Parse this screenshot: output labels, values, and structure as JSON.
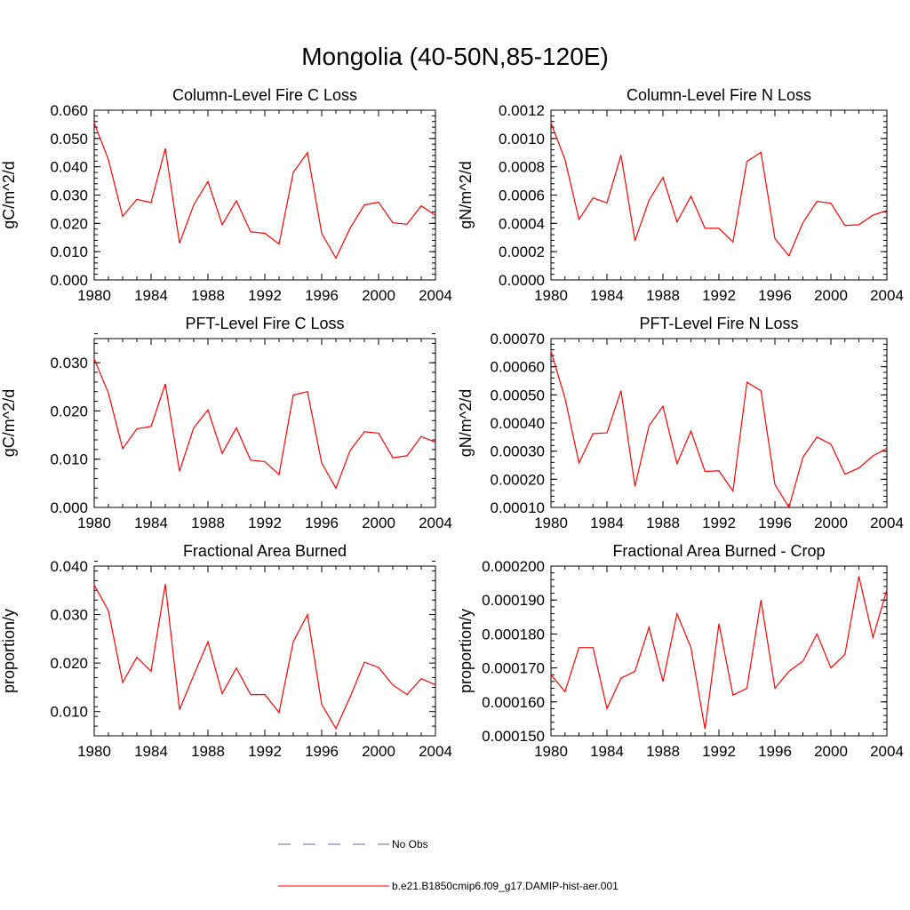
{
  "figure_title": "Mongolia (40-50N,85-120E)",
  "legend": [
    {
      "label": "No Obs",
      "color": "#5a64b4",
      "style": "dashed"
    },
    {
      "label": "b.e21.B1850cmip6.f09_g17.DAMIP-hist-aer.001",
      "color": "#ff0000",
      "style": "solid"
    }
  ],
  "chart_data": [
    {
      "type": "line",
      "title": "Column-Level Fire C Loss",
      "ylabel": "gC/m^2/d",
      "xlim": [
        1980,
        2004
      ],
      "ylim": [
        0.0,
        0.06
      ],
      "xticks": [
        1980,
        1984,
        1988,
        1992,
        1996,
        2000,
        2004
      ],
      "yticks": [
        0.0,
        0.01,
        0.02,
        0.03,
        0.04,
        0.05,
        0.06
      ],
      "yticklabels": [
        "0.000",
        "0.010",
        "0.020",
        "0.030",
        "0.040",
        "0.050",
        "0.060"
      ],
      "x": [
        1980,
        1981,
        1982,
        1983,
        1984,
        1985,
        1986,
        1987,
        1988,
        1989,
        1990,
        1991,
        1992,
        1993,
        1994,
        1995,
        1996,
        1997,
        1998,
        1999,
        2000,
        2001,
        2002,
        2003,
        2004
      ],
      "series": [
        {
          "color": "#ff0000",
          "values": [
            0.0555,
            0.0425,
            0.0225,
            0.0285,
            0.0273,
            0.0465,
            0.013,
            0.0265,
            0.0348,
            0.0195,
            0.028,
            0.017,
            0.0165,
            0.0127,
            0.038,
            0.045,
            0.0165,
            0.0077,
            0.0183,
            0.0265,
            0.0275,
            0.0202,
            0.0197,
            0.0262,
            0.0228
          ]
        }
      ]
    },
    {
      "type": "line",
      "title": "Column-Level Fire N Loss",
      "ylabel": "gN/m^2/d",
      "xlim": [
        1980,
        2004
      ],
      "ylim": [
        0.0,
        0.0012
      ],
      "xticks": [
        1980,
        1984,
        1988,
        1992,
        1996,
        2000,
        2004
      ],
      "yticks": [
        0.0,
        0.0002,
        0.0004,
        0.0006,
        0.0008,
        0.001,
        0.0012
      ],
      "yticklabels": [
        "0.0000",
        "0.0002",
        "0.0004",
        "0.0006",
        "0.0008",
        "0.0010",
        "0.0012"
      ],
      "x": [
        1980,
        1981,
        1982,
        1983,
        1984,
        1985,
        1986,
        1987,
        1988,
        1989,
        1990,
        1991,
        1992,
        1993,
        1994,
        1995,
        1996,
        1997,
        1998,
        1999,
        2000,
        2001,
        2002,
        2003,
        2004
      ],
      "series": [
        {
          "color": "#ff0000",
          "values": [
            0.00111,
            0.00085,
            0.000428,
            0.00058,
            0.000545,
            0.000882,
            0.000278,
            0.000562,
            0.000725,
            0.00041,
            0.000592,
            0.000365,
            0.000365,
            0.000268,
            0.000838,
            0.000902,
            0.000292,
            0.00017,
            0.000405,
            0.000555,
            0.000542,
            0.000385,
            0.00039,
            0.000458,
            0.00049
          ]
        }
      ]
    },
    {
      "type": "line",
      "title": "PFT-Level Fire C Loss",
      "ylabel": "gC/m^2/d",
      "xlim": [
        1980,
        2004
      ],
      "ylim": [
        0.0,
        0.035
      ],
      "xticks": [
        1980,
        1984,
        1988,
        1992,
        1996,
        2000,
        2004
      ],
      "yticks": [
        0.0,
        0.01,
        0.02,
        0.03
      ],
      "yticklabels": [
        "0.000",
        "0.010",
        "0.020",
        "0.030"
      ],
      "x": [
        1980,
        1981,
        1982,
        1983,
        1984,
        1985,
        1986,
        1987,
        1988,
        1989,
        1990,
        1991,
        1992,
        1993,
        1994,
        1995,
        1996,
        1997,
        1998,
        1999,
        2000,
        2001,
        2002,
        2003,
        2004
      ],
      "series": [
        {
          "color": "#ff0000",
          "values": [
            0.0308,
            0.0237,
            0.0122,
            0.0163,
            0.0168,
            0.0256,
            0.0075,
            0.0165,
            0.0202,
            0.0112,
            0.0165,
            0.0098,
            0.0095,
            0.0068,
            0.0233,
            0.024,
            0.0092,
            0.004,
            0.0118,
            0.0157,
            0.0154,
            0.0103,
            0.0107,
            0.0147,
            0.0135
          ]
        }
      ]
    },
    {
      "type": "line",
      "title": "PFT-Level Fire N Loss",
      "ylabel": "gN/m^2/d",
      "xlim": [
        1980,
        2004
      ],
      "ylim": [
        0.0001,
        0.0007
      ],
      "xticks": [
        1980,
        1984,
        1988,
        1992,
        1996,
        2000,
        2004
      ],
      "yticks": [
        0.0001,
        0.0002,
        0.0003,
        0.0004,
        0.0005,
        0.0006,
        0.0007
      ],
      "yticklabels": [
        "0.00010",
        "0.00020",
        "0.00030",
        "0.00040",
        "0.00050",
        "0.00060",
        "0.00070"
      ],
      "x": [
        1980,
        1981,
        1982,
        1983,
        1984,
        1985,
        1986,
        1987,
        1988,
        1989,
        1990,
        1991,
        1992,
        1993,
        1994,
        1995,
        1996,
        1997,
        1998,
        1999,
        2000,
        2001,
        2002,
        2003,
        2004
      ],
      "series": [
        {
          "color": "#ff0000",
          "values": [
            0.000655,
            0.000488,
            0.000258,
            0.000362,
            0.000365,
            0.000515,
            0.000175,
            0.00039,
            0.00046,
            0.000255,
            0.000372,
            0.000228,
            0.00023,
            0.000158,
            0.000545,
            0.000515,
            0.000182,
            0.0001,
            0.000278,
            0.00035,
            0.000325,
            0.000218,
            0.00024,
            0.000283,
            0.00031
          ]
        }
      ]
    },
    {
      "type": "line",
      "title": "Fractional Area Burned",
      "ylabel": "proportion/y",
      "xlim": [
        1980,
        2004
      ],
      "ylim": [
        0.005,
        0.04
      ],
      "xticks": [
        1980,
        1984,
        1988,
        1992,
        1996,
        2000,
        2004
      ],
      "yticks": [
        0.01,
        0.02,
        0.03,
        0.04
      ],
      "yticklabels": [
        "0.010",
        "0.020",
        "0.030",
        "0.040"
      ],
      "x": [
        1980,
        1981,
        1982,
        1983,
        1984,
        1985,
        1986,
        1987,
        1988,
        1989,
        1990,
        1991,
        1992,
        1993,
        1994,
        1995,
        1996,
        1997,
        1998,
        1999,
        2000,
        2001,
        2002,
        2003,
        2004
      ],
      "series": [
        {
          "color": "#ff0000",
          "values": [
            0.0361,
            0.0308,
            0.016,
            0.0212,
            0.0183,
            0.0363,
            0.0104,
            0.0175,
            0.0244,
            0.0137,
            0.019,
            0.0135,
            0.0135,
            0.0098,
            0.0244,
            0.03,
            0.0115,
            0.0065,
            0.013,
            0.0202,
            0.0191,
            0.0155,
            0.0135,
            0.0168,
            0.0155
          ]
        }
      ]
    },
    {
      "type": "line",
      "title": "Fractional Area Burned - Crop",
      "ylabel": "proportion/y",
      "xlim": [
        1980,
        2004
      ],
      "ylim": [
        0.00015,
        0.0002
      ],
      "xticks": [
        1980,
        1984,
        1988,
        1992,
        1996,
        2000,
        2004
      ],
      "yticks": [
        0.00015,
        0.00016,
        0.00017,
        0.00018,
        0.00019,
        0.0002
      ],
      "yticklabels": [
        "0.000150",
        "0.000160",
        "0.000170",
        "0.000180",
        "0.000190",
        "0.000200"
      ],
      "x": [
        1980,
        1981,
        1982,
        1983,
        1984,
        1985,
        1986,
        1987,
        1988,
        1989,
        1990,
        1991,
        1992,
        1993,
        1994,
        1995,
        1996,
        1997,
        1998,
        1999,
        2000,
        2001,
        2002,
        2003,
        2004
      ],
      "series": [
        {
          "color": "#ff0000",
          "values": [
            0.000168,
            0.000163,
            0.000176,
            0.000176,
            0.000158,
            0.000167,
            0.000169,
            0.000182,
            0.000166,
            0.000186,
            0.000176,
            0.000152,
            0.000183,
            0.000162,
            0.000164,
            0.00019,
            0.000164,
            0.000169,
            0.000172,
            0.00018,
            0.00017,
            0.000174,
            0.000197,
            0.000179,
            0.000193
          ]
        }
      ]
    }
  ]
}
